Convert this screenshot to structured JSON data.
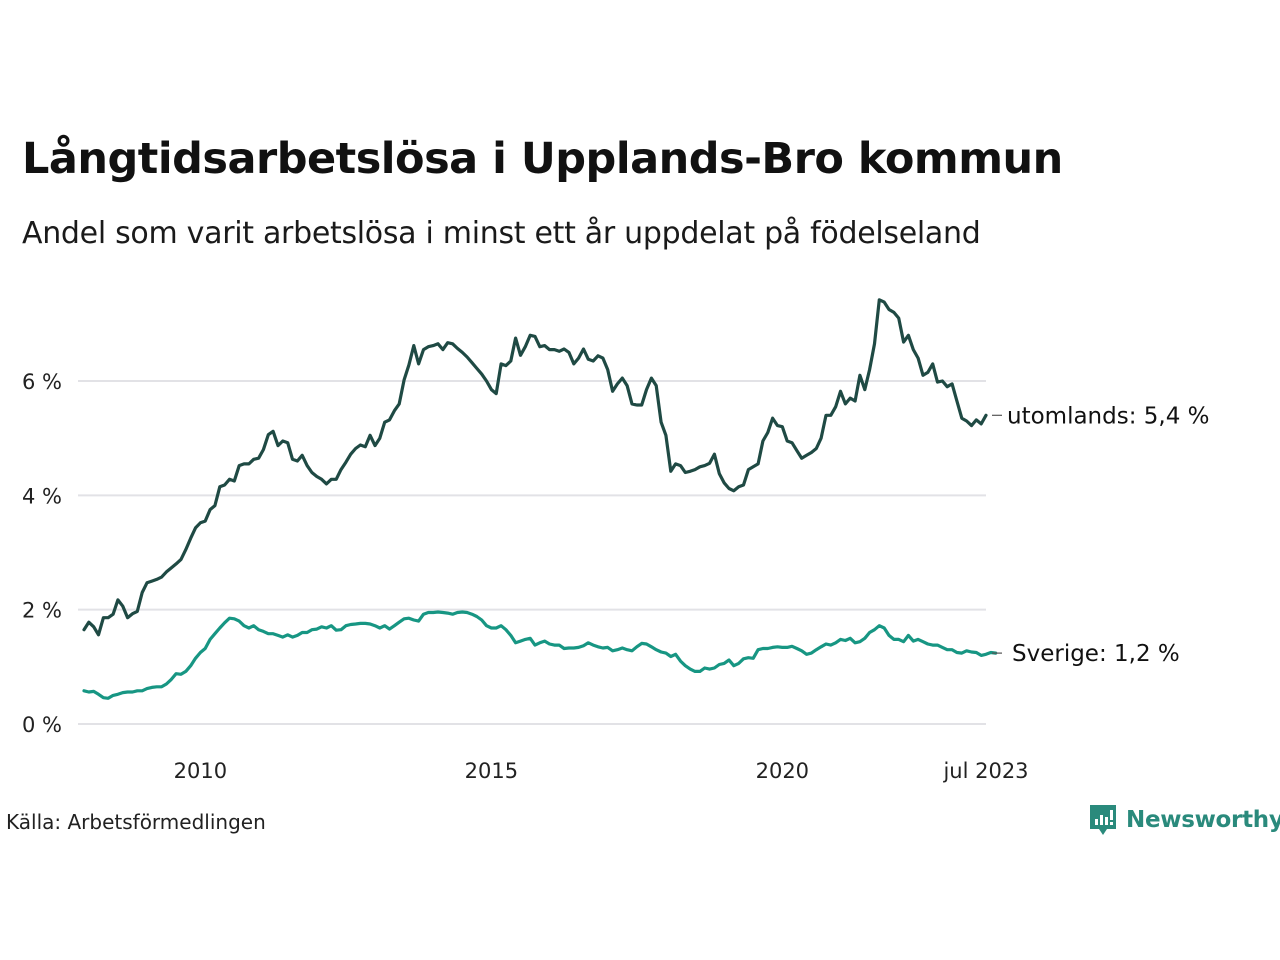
{
  "header": {
    "title": "Långtidsarbetslösa i Upplands-Bro kommun",
    "subtitle": "Andel som varit arbetslösa i minst ett år uppdelat på födelseland"
  },
  "footer": {
    "source": "Källa: Arbetsförmedlingen",
    "brand": "Newsworthy",
    "brand_icon": "newsworthy-logo-icon",
    "brand_color": "#2a8a7c"
  },
  "chart_data": {
    "type": "line",
    "title": "Långtidsarbetslösa i Upplands-Bro kommun",
    "subtitle": "Andel som varit arbetslösa i minst ett år uppdelat på födelseland",
    "xlabel": "",
    "ylabel": "",
    "x_start": "2008-01",
    "x_end": "2023-07",
    "x_frequency": "monthly",
    "x_ticks": [
      {
        "year": 2010,
        "month": 1,
        "label": "2010"
      },
      {
        "year": 2015,
        "month": 1,
        "label": "2015"
      },
      {
        "year": 2020,
        "month": 1,
        "label": "2020"
      },
      {
        "year": 2023,
        "month": 7,
        "label": "jul 2023"
      }
    ],
    "y_ticks": [
      {
        "value": 0,
        "label": "0 %"
      },
      {
        "value": 2,
        "label": "2 %"
      },
      {
        "value": 4,
        "label": "4 %"
      },
      {
        "value": 6,
        "label": "6 %"
      }
    ],
    "ylim": [
      0,
      7.5
    ],
    "grid": true,
    "legend": "direct-labels-right",
    "series": [
      {
        "name": "utomlands",
        "end_label": "utomlands: 5,4 %",
        "color": "#1f4a44",
        "values": [
          1.65,
          1.78,
          1.7,
          1.56,
          1.86,
          1.86,
          1.92,
          2.17,
          2.06,
          1.86,
          1.93,
          1.97,
          2.3,
          2.47,
          2.5,
          2.53,
          2.57,
          2.66,
          2.73,
          2.8,
          2.88,
          3.05,
          3.25,
          3.43,
          3.52,
          3.55,
          3.75,
          3.82,
          4.15,
          4.18,
          4.28,
          4.25,
          4.52,
          4.55,
          4.55,
          4.63,
          4.65,
          4.8,
          5.06,
          5.12,
          4.87,
          4.95,
          4.92,
          4.63,
          4.6,
          4.7,
          4.52,
          4.4,
          4.33,
          4.28,
          4.2,
          4.28,
          4.28,
          4.45,
          4.58,
          4.72,
          4.82,
          4.88,
          4.85,
          5.05,
          4.87,
          5.0,
          5.28,
          5.32,
          5.48,
          5.6,
          6.02,
          6.28,
          6.62,
          6.3,
          6.55,
          6.6,
          6.62,
          6.65,
          6.55,
          6.67,
          6.65,
          6.57,
          6.5,
          6.42,
          6.32,
          6.22,
          6.12,
          6.0,
          5.85,
          5.78,
          6.3,
          6.27,
          6.35,
          6.75,
          6.45,
          6.6,
          6.8,
          6.78,
          6.6,
          6.62,
          6.55,
          6.55,
          6.52,
          6.56,
          6.5,
          6.3,
          6.4,
          6.56,
          6.38,
          6.35,
          6.44,
          6.4,
          6.2,
          5.82,
          5.95,
          6.05,
          5.92,
          5.6,
          5.58,
          5.58,
          5.85,
          6.05,
          5.92,
          5.28,
          5.05,
          4.42,
          4.55,
          4.52,
          4.4,
          4.42,
          4.45,
          4.5,
          4.52,
          4.56,
          4.72,
          4.38,
          4.22,
          4.12,
          4.08,
          4.15,
          4.18,
          4.45,
          4.5,
          4.55,
          4.95,
          5.1,
          5.35,
          5.22,
          5.2,
          4.95,
          4.92,
          4.78,
          4.65,
          4.7,
          4.75,
          4.82,
          5.0,
          5.4,
          5.4,
          5.55,
          5.82,
          5.6,
          5.7,
          5.65,
          6.1,
          5.85,
          6.2,
          6.65,
          7.42,
          7.38,
          7.25,
          7.2,
          7.1,
          6.68,
          6.8,
          6.55,
          6.4,
          6.1,
          6.15,
          6.3,
          5.98,
          6.0,
          5.9,
          5.95,
          5.65,
          5.35,
          5.3,
          5.22,
          5.32,
          5.25,
          5.4
        ]
      },
      {
        "name": "Sverige",
        "end_label": "Sverige: 1,2 %",
        "color": "#179683",
        "values": [
          0.58,
          0.56,
          0.57,
          0.52,
          0.46,
          0.45,
          0.5,
          0.52,
          0.55,
          0.56,
          0.56,
          0.58,
          0.58,
          0.62,
          0.64,
          0.65,
          0.65,
          0.7,
          0.78,
          0.88,
          0.87,
          0.92,
          1.02,
          1.15,
          1.25,
          1.32,
          1.48,
          1.58,
          1.68,
          1.77,
          1.85,
          1.84,
          1.8,
          1.72,
          1.68,
          1.72,
          1.65,
          1.62,
          1.58,
          1.58,
          1.55,
          1.52,
          1.56,
          1.52,
          1.55,
          1.6,
          1.6,
          1.65,
          1.66,
          1.7,
          1.68,
          1.72,
          1.64,
          1.65,
          1.72,
          1.74,
          1.75,
          1.76,
          1.76,
          1.75,
          1.72,
          1.68,
          1.72,
          1.66,
          1.72,
          1.78,
          1.84,
          1.85,
          1.82,
          1.8,
          1.92,
          1.95,
          1.95,
          1.96,
          1.95,
          1.94,
          1.92,
          1.95,
          1.96,
          1.95,
          1.92,
          1.88,
          1.82,
          1.72,
          1.68,
          1.68,
          1.72,
          1.65,
          1.55,
          1.42,
          1.45,
          1.48,
          1.5,
          1.38,
          1.42,
          1.45,
          1.4,
          1.38,
          1.38,
          1.32,
          1.33,
          1.33,
          1.34,
          1.37,
          1.42,
          1.38,
          1.35,
          1.33,
          1.34,
          1.28,
          1.3,
          1.33,
          1.3,
          1.28,
          1.35,
          1.41,
          1.4,
          1.35,
          1.3,
          1.26,
          1.24,
          1.18,
          1.22,
          1.1,
          1.02,
          0.96,
          0.92,
          0.92,
          0.98,
          0.96,
          0.98,
          1.04,
          1.06,
          1.12,
          1.02,
          1.06,
          1.14,
          1.16,
          1.15,
          1.3,
          1.32,
          1.32,
          1.34,
          1.35,
          1.34,
          1.34,
          1.36,
          1.32,
          1.28,
          1.22,
          1.24,
          1.3,
          1.35,
          1.4,
          1.38,
          1.42,
          1.48,
          1.46,
          1.5,
          1.42,
          1.44,
          1.5,
          1.6,
          1.65,
          1.72,
          1.68,
          1.55,
          1.48,
          1.48,
          1.44,
          1.55,
          1.45,
          1.48,
          1.44,
          1.4,
          1.38,
          1.38,
          1.34,
          1.3,
          1.3,
          1.25,
          1.24,
          1.28,
          1.26,
          1.25,
          1.2,
          1.22,
          1.25,
          1.24
        ]
      }
    ]
  }
}
